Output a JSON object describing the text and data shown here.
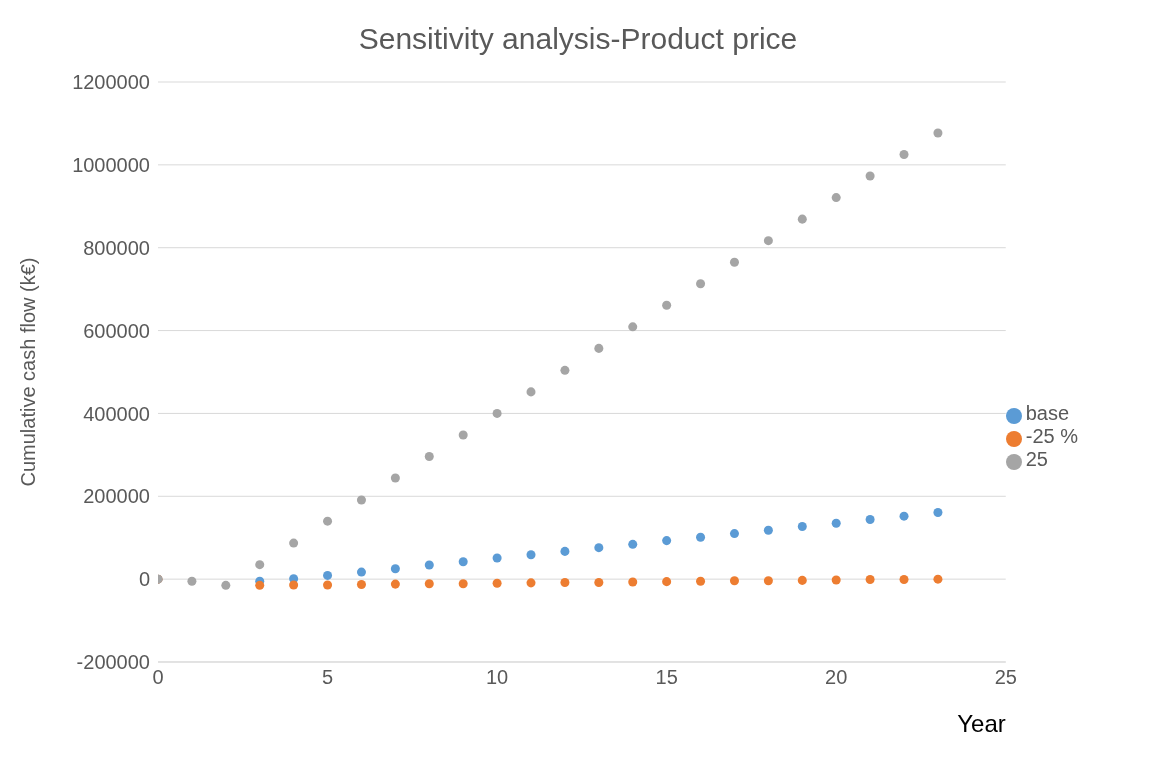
{
  "chart_data": {
    "type": "scatter",
    "title": "Sensitivity analysis-Product price",
    "xlabel": "Year",
    "ylabel": "Cumulative cash flow (k€)",
    "x": [
      0,
      1,
      2,
      3,
      4,
      5,
      6,
      7,
      8,
      9,
      10,
      11,
      12,
      13,
      14,
      15,
      16,
      17,
      18,
      19,
      20,
      21,
      22,
      23
    ],
    "series": [
      {
        "name": "base",
        "color": "#5b9bd5",
        "values": [
          0,
          null,
          null,
          -5000,
          1000,
          9000,
          17000,
          25000,
          34000,
          42000,
          51000,
          59000,
          67000,
          76000,
          84000,
          93000,
          101000,
          110000,
          118000,
          127000,
          135000,
          144000,
          152000,
          161000
        ]
      },
      {
        "name": "-25 %",
        "color": "#ed7d31",
        "values": [
          0,
          null,
          null,
          -15000,
          -14000,
          -14000,
          -13000,
          -12000,
          -11000,
          -11000,
          -10000,
          -9000,
          -8000,
          -8000,
          -7000,
          -6000,
          -5000,
          -4000,
          -4000,
          -3000,
          -2000,
          -1000,
          -1000,
          0
        ]
      },
      {
        "name": "25",
        "color": "#a5a5a5",
        "values": [
          0,
          -5000,
          -15000,
          35000,
          87000,
          140000,
          191000,
          244000,
          296000,
          348000,
          400000,
          452000,
          504000,
          557000,
          609000,
          661000,
          713000,
          765000,
          817000,
          869000,
          921000,
          973000,
          1025000,
          1077000
        ]
      }
    ],
    "xlim": [
      0,
      25
    ],
    "xticks": [
      0,
      5,
      10,
      15,
      20,
      25
    ],
    "ylim": [
      -200000,
      1200000
    ],
    "yticks": [
      -200000,
      0,
      200000,
      400000,
      600000,
      800000,
      1000000,
      1200000
    ],
    "grid": "y",
    "legend": "right",
    "marker": "circle"
  }
}
